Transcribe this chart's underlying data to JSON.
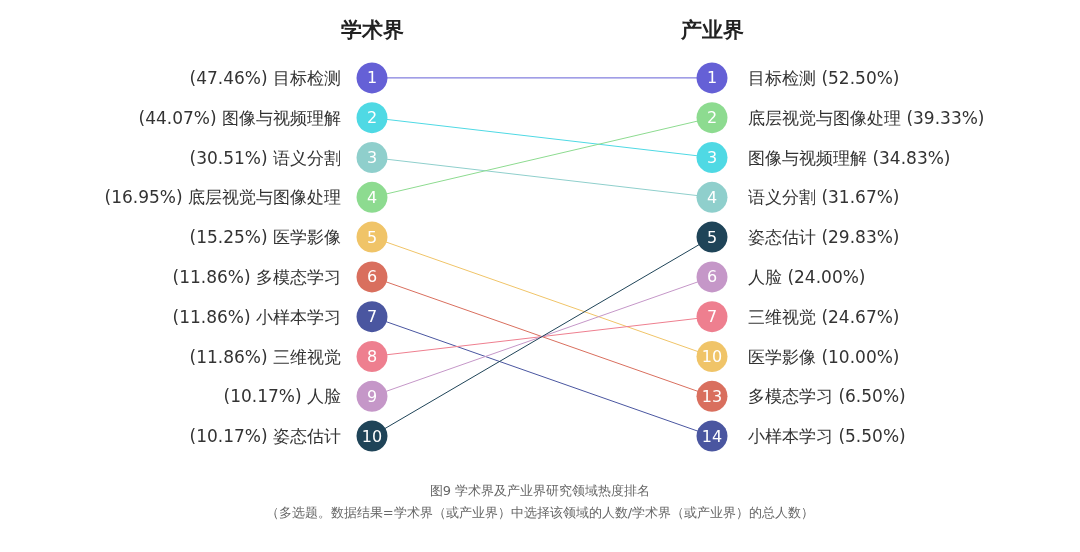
{
  "chart_data": {
    "type": "other",
    "categories": [
      "学术界",
      "产业界"
    ],
    "data_labels": true,
    "series": [
      {
        "color": "#6560d6",
        "values": [
          1,
          1
        ]
      },
      {
        "color": "#4fd9e4",
        "values": [
          2,
          3
        ]
      },
      {
        "color": "#8fcfcc",
        "values": [
          3,
          4
        ]
      },
      {
        "color": "#8ddb90",
        "values": [
          4,
          2
        ]
      },
      {
        "color": "#f0c468",
        "values": [
          5,
          10
        ]
      },
      {
        "color": "#d96f5e",
        "values": [
          6,
          13
        ]
      },
      {
        "color": "#4a56a0",
        "values": [
          7,
          14
        ]
      },
      {
        "color": "#ee7f8f",
        "values": [
          8,
          7
        ]
      },
      {
        "color": "#c597c8",
        "values": [
          9,
          6
        ]
      },
      {
        "color": "#1f4458",
        "values": [
          10,
          5
        ]
      }
    ],
    "annotations": [
      {
        "text": "(47.46%) 目标检测",
        "x": "学术界"
      },
      {
        "text": "(44.07%) 图像与视频理解",
        "x": "学术界"
      },
      {
        "text": "(30.51%) 语义分割",
        "x": "学术界"
      },
      {
        "text": "(16.95%) 底层视觉与图像处理",
        "x": "学术界"
      },
      {
        "text": "(15.25%) 医学影像",
        "x": "学术界"
      },
      {
        "text": "(11.86%) 多模态学习",
        "x": "学术界"
      },
      {
        "text": "(11.86%) 小样本学习",
        "x": "学术界"
      },
      {
        "text": "(11.86%) 三维视觉",
        "x": "学术界"
      },
      {
        "text": "(10.17%) 人脸",
        "x": "学术界"
      },
      {
        "text": "(10.17%) 姿态估计",
        "x": "学术界"
      },
      {
        "text": "目标检测 (52.50%)",
        "x": "产业界"
      },
      {
        "text": "底层视觉与图像处理 (39.33%)",
        "x": "产业界"
      },
      {
        "text": "图像与视频理解 (34.83%)",
        "x": "产业界"
      },
      {
        "text": "语义分割 (31.67%)",
        "x": "产业界"
      },
      {
        "text": "姿态估计 (29.83%)",
        "x": "产业界"
      },
      {
        "text": "人脸 (24.00%)",
        "x": "产业界"
      },
      {
        "text": "三维视觉 (24.67%)",
        "x": "产业界"
      },
      {
        "text": "医学影像 (10.00%)",
        "x": "产业界"
      },
      {
        "text": "多模态学习 (6.50%)",
        "x": "产业界"
      },
      {
        "text": "小样本学习 (5.50%)",
        "x": "产业界"
      },
      "图9 学术界及产业界研究领域热度排名",
      "（多选题。数据结果=学术界（或产业界）中选择该领域的人数/学术界（或产业界）的总人数）"
    ]
  }
}
